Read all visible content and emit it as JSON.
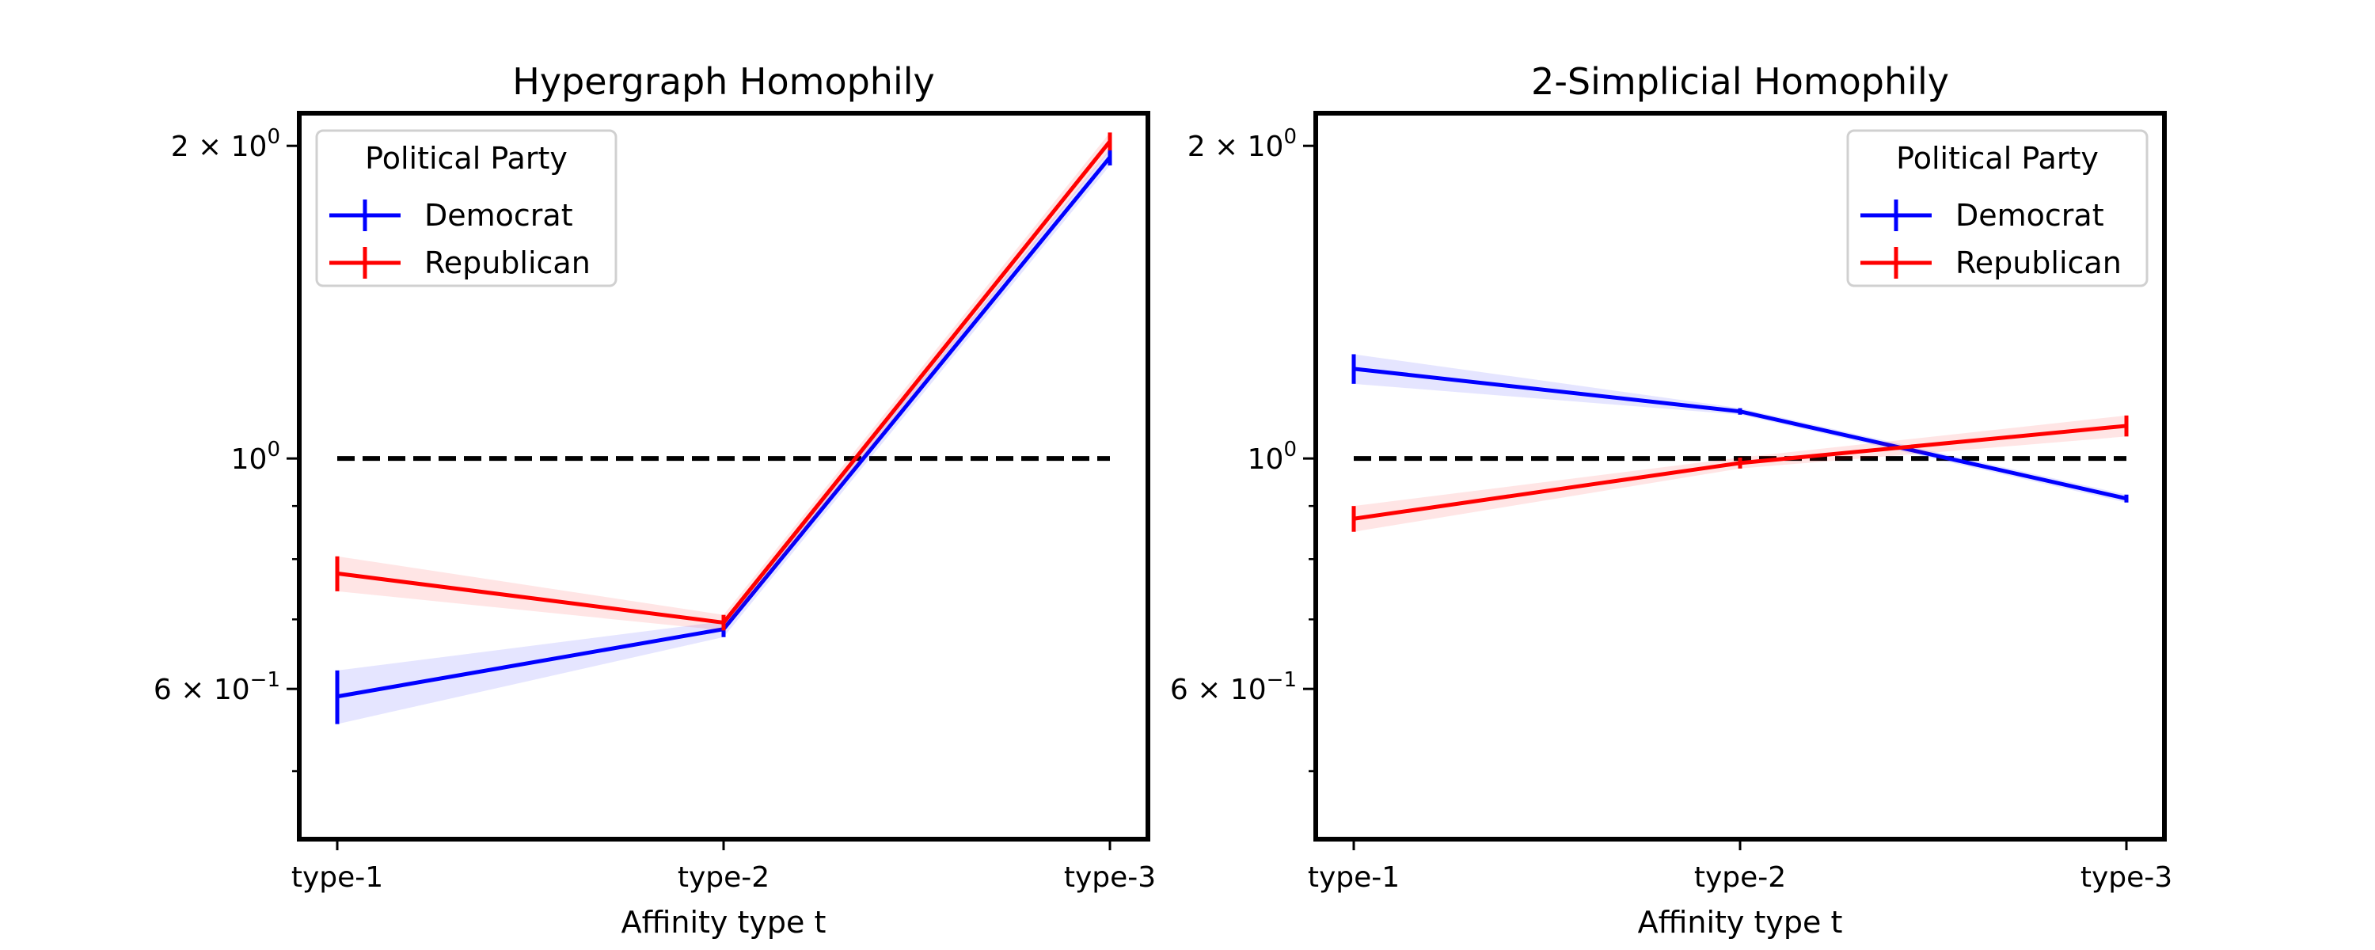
{
  "chart_data": [
    {
      "type": "line",
      "title": "Hypergraph Homophily",
      "xlabel": "Affinity type t",
      "ylabel": "",
      "categories": [
        "type-1",
        "type-2",
        "type-3"
      ],
      "y_scale": "log",
      "ylim": [
        0.43,
        2.15
      ],
      "y_ticks": [
        {
          "value": 2.0,
          "mantissa": "2",
          "exp": "0"
        },
        {
          "value": 1.0,
          "mantissa": "",
          "exp": "0"
        },
        {
          "value": 0.6,
          "mantissa": "6",
          "exp": "−1"
        }
      ],
      "y_minor_ticks": [
        0.5,
        0.7,
        0.8,
        0.9
      ],
      "reference_line": 1.0,
      "legend": {
        "title": "Political Party",
        "position": "upper left"
      },
      "series": [
        {
          "name": "Democrat",
          "color": "#0000ff",
          "values": [
            0.59,
            0.685,
            1.95
          ],
          "errors": [
            0.035,
            0.012,
            0.035
          ]
        },
        {
          "name": "Republican",
          "color": "#ff0000",
          "values": [
            0.775,
            0.695,
            2.02
          ],
          "errors": [
            0.03,
            0.012,
            0.04
          ]
        }
      ],
      "grid": false
    },
    {
      "type": "line",
      "title": "2-Simplicial Homophily",
      "xlabel": "Affinity type t",
      "ylabel": "",
      "categories": [
        "type-1",
        "type-2",
        "type-3"
      ],
      "y_scale": "log",
      "ylim": [
        0.43,
        2.15
      ],
      "y_ticks": [
        {
          "value": 2.0,
          "mantissa": "2",
          "exp": "0"
        },
        {
          "value": 1.0,
          "mantissa": "",
          "exp": "0"
        },
        {
          "value": 0.6,
          "mantissa": "6",
          "exp": "−1"
        }
      ],
      "y_minor_ticks": [
        0.5,
        0.7,
        0.8,
        0.9
      ],
      "reference_line": 1.0,
      "legend": {
        "title": "Political Party",
        "position": "upper right"
      },
      "series": [
        {
          "name": "Democrat",
          "color": "#0000ff",
          "values": [
            1.22,
            1.11,
            0.915
          ],
          "errors": [
            0.04,
            0.008,
            0.008
          ]
        },
        {
          "name": "Republican",
          "color": "#ff0000",
          "values": [
            0.875,
            0.99,
            1.075
          ],
          "errors": [
            0.025,
            0.012,
            0.025
          ]
        }
      ],
      "grid": false
    }
  ]
}
